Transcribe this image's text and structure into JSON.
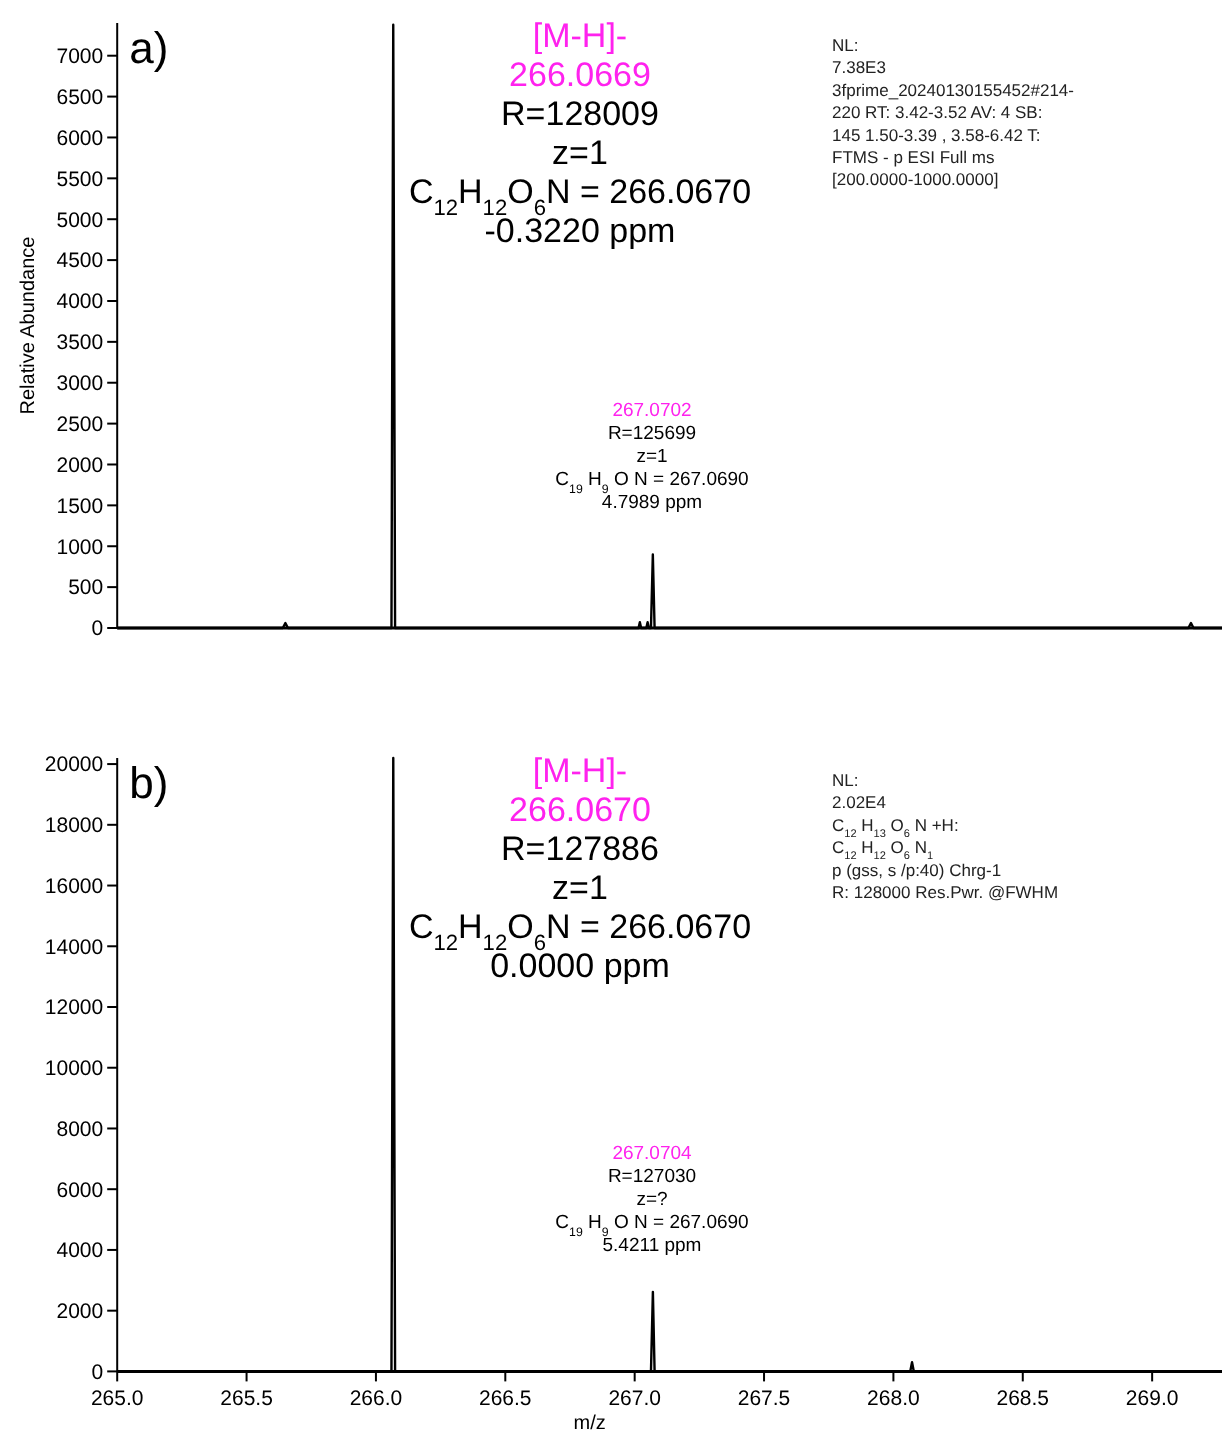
{
  "chart_data": [
    {
      "type": "line",
      "title": "a)",
      "ylabel": "Relative Abundance",
      "xlim": [
        265.0,
        269.27
      ],
      "ylim": [
        0,
        7400
      ],
      "yticks": [
        0,
        500,
        1000,
        1500,
        2000,
        2500,
        3000,
        3500,
        4000,
        4500,
        5000,
        5500,
        6000,
        6500,
        7000
      ],
      "tick_labels": "y",
      "grid": false,
      "line_style": "solid",
      "series": [
        {
          "color": "#000000",
          "x": [
            265.0,
            265.64,
            265.65,
            265.66,
            266.06,
            266.0669,
            266.074,
            267.015,
            267.02,
            267.025,
            267.045,
            267.05,
            267.055,
            267.063,
            267.0702,
            267.077,
            269.14,
            269.15,
            269.16,
            269.27
          ],
          "values": [
            0,
            0,
            60,
            0,
            0,
            7380,
            0,
            0,
            70,
            0,
            0,
            70,
            0,
            0,
            900,
            0,
            0,
            60,
            0,
            0
          ]
        }
      ],
      "annotations": [
        "[M-H]-\n266.0669",
        "R=128009\nz=1\nC$_{12}$H$_{12}$O$_{6}$N = 266.0670\n-0.3220 ppm",
        "267.0702",
        "R=125699\nz=1\nC$_{19}$ H$_{9}$ O N = 267.0690\n4.7989 ppm",
        "NL:\n7.38E3\n3fprime_20240130155452#214-\n220  RT: 3.42-3.52  AV: 4 SB:\n145  1.50-3.39  , 3.58-6.42  T:\nFTMS - p ESI Full ms\n[200.0000-1000.0000]"
      ]
    },
    {
      "type": "line",
      "title": "b)",
      "xlabel": "m/z",
      "xlim": [
        265.0,
        269.27
      ],
      "xticks": [
        {
          "value": 265.0,
          "label": "265.0"
        },
        265.5,
        {
          "value": 266.0,
          "label": "266.0"
        },
        266.5,
        {
          "value": 267.0,
          "label": "267.0"
        },
        267.5,
        {
          "value": 268.0,
          "label": "268.0"
        },
        268.5,
        {
          "value": 269.0,
          "label": "269.0"
        }
      ],
      "ylim": [
        0,
        20200
      ],
      "yticks": [
        0,
        2000,
        4000,
        6000,
        8000,
        10000,
        12000,
        14000,
        16000,
        18000,
        20000
      ],
      "grid": false,
      "line_style": "solid",
      "series": [
        {
          "color": "#000000",
          "x": [
            265.0,
            266.06,
            266.067,
            266.074,
            267.063,
            267.0704,
            267.077,
            268.065,
            268.072,
            268.079,
            269.27
          ],
          "values": [
            0,
            0,
            20200,
            0,
            0,
            2620,
            0,
            0,
            300,
            0,
            0
          ]
        }
      ],
      "annotations": [
        "[M-H]-\n266.0670",
        "R=127886\nz=1\nC$_{12}$H$_{12}$O$_{6}$N = 266.0670\n0.0000 ppm",
        "267.0704",
        "R=127030\nz=?\nC$_{19}$ H$_{9}$ O N = 267.0690\n5.4211 ppm",
        "NL:\n2.02E4\nC$_{12}$ H$_{13}$ O$_{6}$ N +H:\nC$_{12}$ H$_{12}$ O$_{6}$ N$_{1}$\np (gss, s /p:40) Chrg-1\nR: 128000 Res.Pwr. @FWHM"
      ]
    }
  ]
}
